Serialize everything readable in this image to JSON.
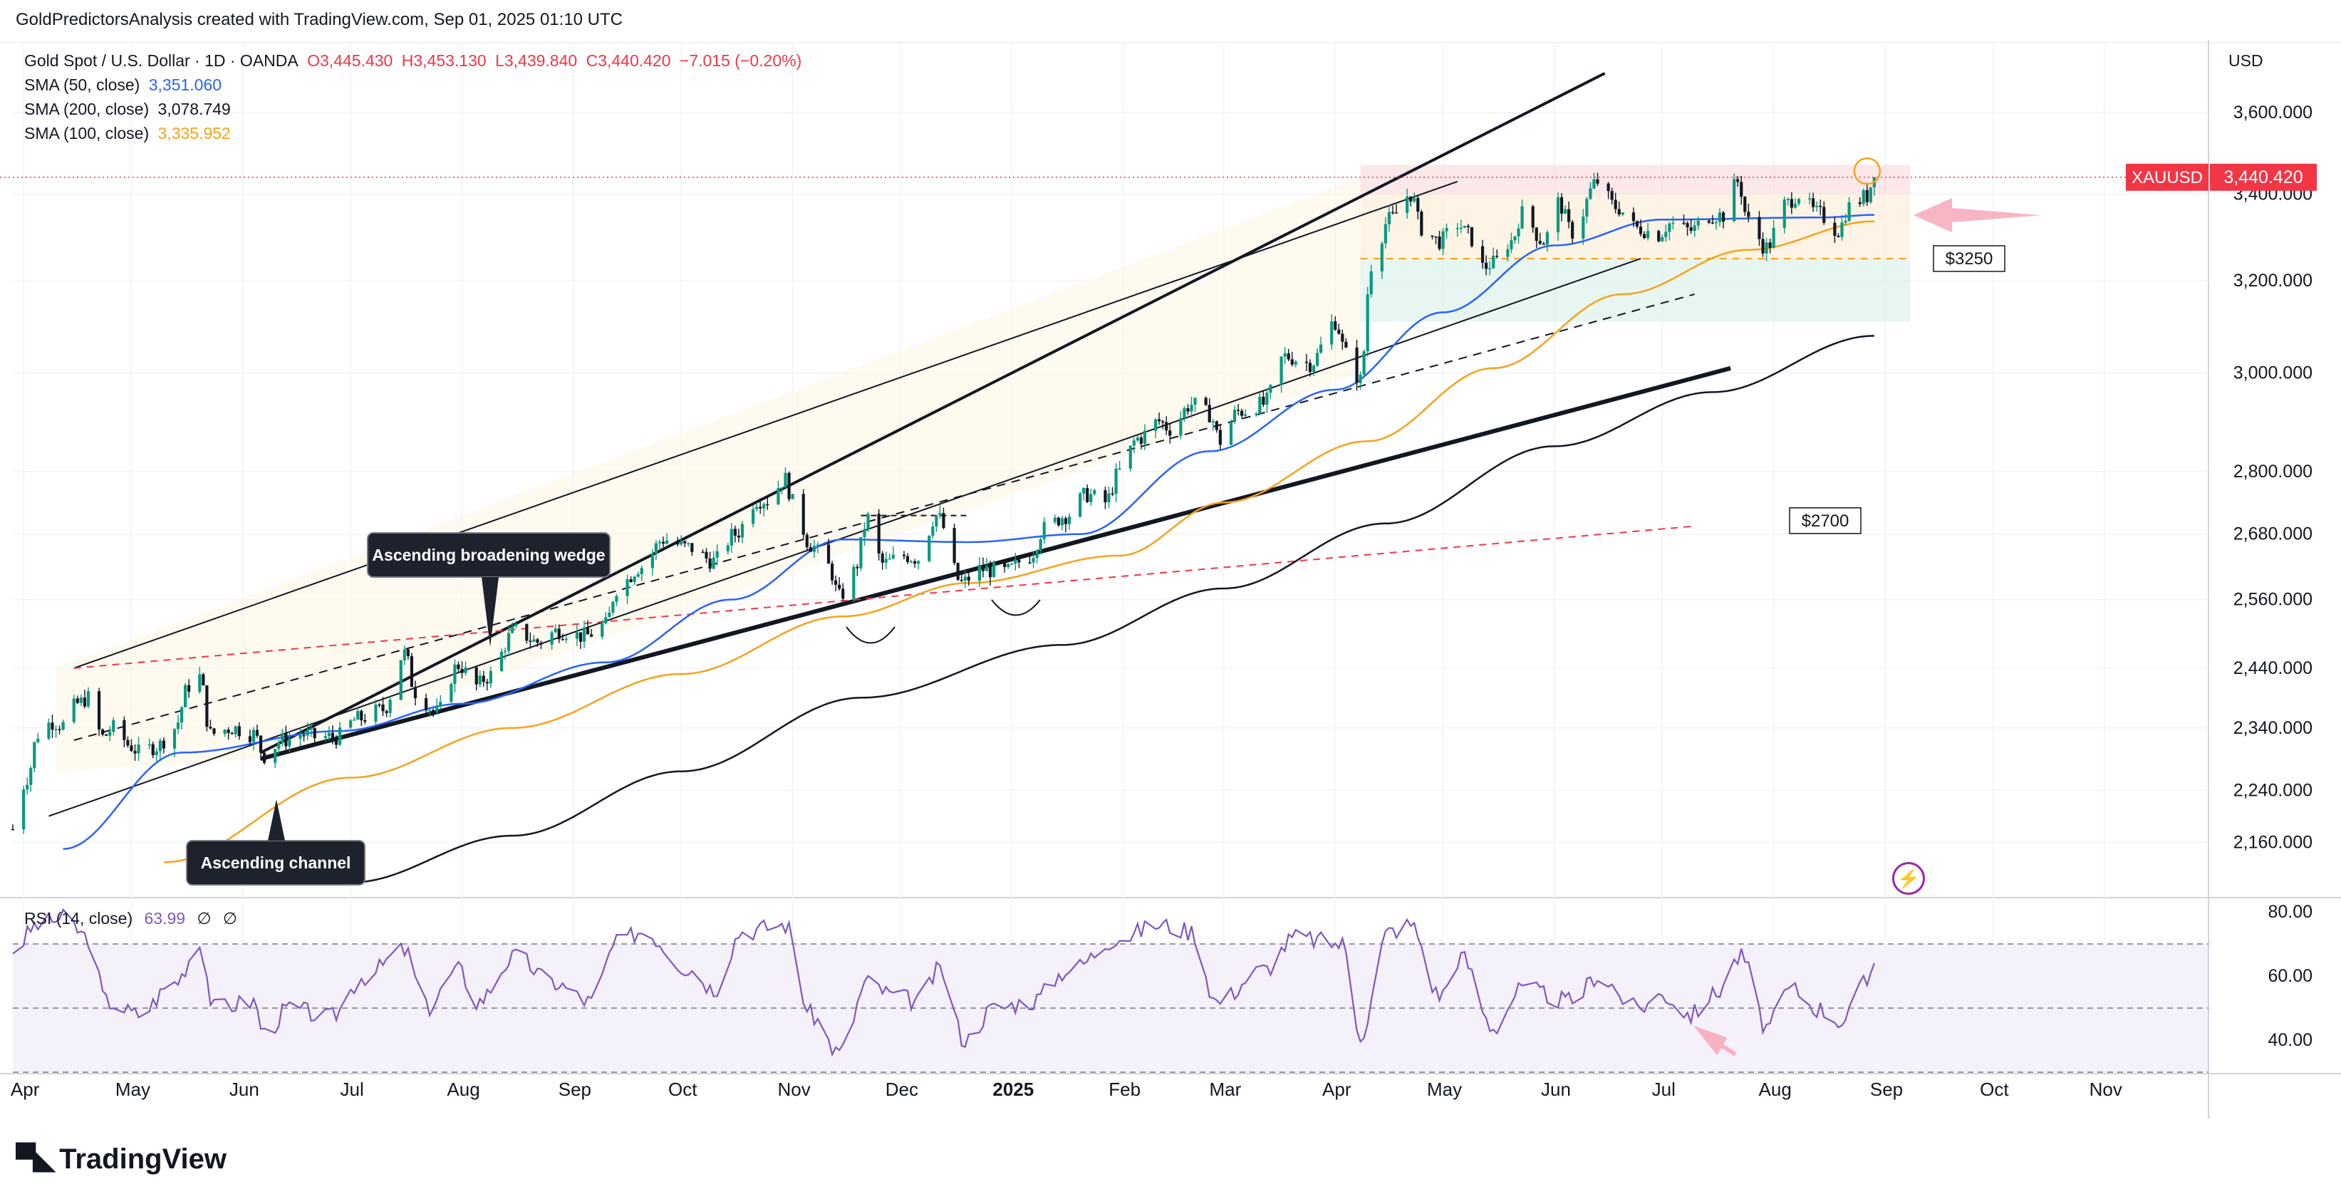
{
  "header": {
    "author_line": "GoldPredictorsAnalysis created with TradingView.com, Sep 01, 2025 01:10 UTC"
  },
  "legend": {
    "symbol": "Gold Spot / U.S. Dollar · 1D · OANDA",
    "ohlc": {
      "o": "O3,445.430",
      "h": "H3,453.130",
      "l": "L3,439.840",
      "c": "C3,440.420",
      "chg": "−7.015 (−0.20%)"
    },
    "sma50": {
      "label": "SMA (50, close)",
      "value": "3,351.060"
    },
    "sma200": {
      "label": "SMA (200, close)",
      "value": "3,078.749"
    },
    "sma100": {
      "label": "SMA (100, close)",
      "value": "3,335.952"
    }
  },
  "rsi_legend": {
    "label": "RSI (14, close)",
    "value": "63.99",
    "ph1": "∅",
    "ph2": "∅"
  },
  "axis": {
    "currency": "USD"
  },
  "price_tag": {
    "symbol": "XAUUSD",
    "value": "3,440.420"
  },
  "annotations": {
    "wedge": "Ascending broadening wedge",
    "channel": "Ascending channel",
    "level_3250": "$3250",
    "level_2700": "$2700"
  },
  "brand": {
    "name": "TradingView"
  },
  "colors": {
    "up": "#089981",
    "down": "#131722",
    "sma50": "#2962ff",
    "sma100": "#f7a21b",
    "sma200": "#131722",
    "rsi": "#7e57c2",
    "price_tag": "#f23645",
    "grid": "#f0f3fa"
  },
  "chart_data": [
    {
      "type": "candlestick",
      "title": "Gold Spot / U.S. Dollar · 1D · OANDA",
      "x_tick_labels": [
        "Apr",
        "May",
        "Jun",
        "Jul",
        "Aug",
        "Sep",
        "Oct",
        "Nov",
        "Dec",
        "2025",
        "Feb",
        "Mar",
        "Apr",
        "May",
        "Jun",
        "Jul",
        "Aug",
        "Sep",
        "Oct",
        "Nov"
      ],
      "y_tick_labels": [
        "2,160.000",
        "2,240.000",
        "2,340.000",
        "2,440.000",
        "2,560.000",
        "2,680.000",
        "2,800.000",
        "3,000.000",
        "3,200.000",
        "3,400.000",
        "3,600.000"
      ],
      "y_ticks": [
        2160,
        2240,
        2340,
        2440,
        2560,
        2680,
        2800,
        3000,
        3200,
        3400,
        3600
      ],
      "scale": "log",
      "ylim": [
        2080,
        3780
      ],
      "x_range": [
        "2024-03-29",
        "2025-11-30"
      ],
      "close_anchors": [
        [
          "2024-03-29",
          2180
        ],
        [
          "2024-04-02",
          2260
        ],
        [
          "2024-04-05",
          2330
        ],
        [
          "2024-04-09",
          2350
        ],
        [
          "2024-04-12",
          2345
        ],
        [
          "2024-04-16",
          2380
        ],
        [
          "2024-04-19",
          2390
        ],
        [
          "2024-04-23",
          2325
        ],
        [
          "2024-04-26",
          2340
        ],
        [
          "2024-05-01",
          2310
        ],
        [
          "2024-05-03",
          2300
        ],
        [
          "2024-05-08",
          2310
        ],
        [
          "2024-05-13",
          2340
        ],
        [
          "2024-05-17",
          2410
        ],
        [
          "2024-05-20",
          2425
        ],
        [
          "2024-05-23",
          2330
        ],
        [
          "2024-05-29",
          2340
        ],
        [
          "2024-06-04",
          2330
        ],
        [
          "2024-06-07",
          2295
        ],
        [
          "2024-06-12",
          2320
        ],
        [
          "2024-06-18",
          2330
        ],
        [
          "2024-06-21",
          2325
        ],
        [
          "2024-06-27",
          2325
        ],
        [
          "2024-07-03",
          2355
        ],
        [
          "2024-07-10",
          2370
        ],
        [
          "2024-07-16",
          2465
        ],
        [
          "2024-07-19",
          2400
        ],
        [
          "2024-07-25",
          2365
        ],
        [
          "2024-07-31",
          2445
        ],
        [
          "2024-08-05",
          2410
        ],
        [
          "2024-08-08",
          2425
        ],
        [
          "2024-08-16",
          2505
        ],
        [
          "2024-08-22",
          2485
        ],
        [
          "2024-08-28",
          2505
        ],
        [
          "2024-09-04",
          2495
        ],
        [
          "2024-09-10",
          2515
        ],
        [
          "2024-09-13",
          2580
        ],
        [
          "2024-09-20",
          2620
        ],
        [
          "2024-09-26",
          2670
        ],
        [
          "2024-10-03",
          2655
        ],
        [
          "2024-10-10",
          2630
        ],
        [
          "2024-10-16",
          2680
        ],
        [
          "2024-10-22",
          2745
        ],
        [
          "2024-10-25",
          2745
        ],
        [
          "2024-10-30",
          2785
        ],
        [
          "2024-11-01",
          2740
        ],
        [
          "2024-11-06",
          2660
        ],
        [
          "2024-11-11",
          2620
        ],
        [
          "2024-11-14",
          2565
        ],
        [
          "2024-11-18",
          2610
        ],
        [
          "2024-11-22",
          2710
        ],
        [
          "2024-11-26",
          2625
        ],
        [
          "2024-12-02",
          2640
        ],
        [
          "2024-12-06",
          2635
        ],
        [
          "2024-12-11",
          2715
        ],
        [
          "2024-12-18",
          2590
        ],
        [
          "2024-12-23",
          2615
        ],
        [
          "2024-12-30",
          2610
        ],
        [
          "2025-01-06",
          2640
        ],
        [
          "2025-01-10",
          2690
        ],
        [
          "2025-01-16",
          2715
        ],
        [
          "2025-01-22",
          2755
        ],
        [
          "2025-01-27",
          2740
        ],
        [
          "2025-01-31",
          2800
        ],
        [
          "2025-02-05",
          2865
        ],
        [
          "2025-02-11",
          2900
        ],
        [
          "2025-02-14",
          2885
        ],
        [
          "2025-02-20",
          2935
        ],
        [
          "2025-02-25",
          2915
        ],
        [
          "2025-02-28",
          2860
        ],
        [
          "2025-03-05",
          2920
        ],
        [
          "2025-03-12",
          2935
        ],
        [
          "2025-03-18",
          3035
        ],
        [
          "2025-03-25",
          3020
        ],
        [
          "2025-04-01",
          3110
        ],
        [
          "2025-04-04",
          3040
        ],
        [
          "2025-04-08",
          2985
        ],
        [
          "2025-04-11",
          3235
        ],
        [
          "2025-04-16",
          3340
        ],
        [
          "2025-04-22",
          3400
        ],
        [
          "2025-04-25",
          3320
        ],
        [
          "2025-04-30",
          3290
        ],
        [
          "2025-05-05",
          3330
        ],
        [
          "2025-05-08",
          3305
        ],
        [
          "2025-05-12",
          3230
        ],
        [
          "2025-05-15",
          3240
        ],
        [
          "2025-05-20",
          3290
        ],
        [
          "2025-05-23",
          3355
        ],
        [
          "2025-05-29",
          3290
        ],
        [
          "2025-06-02",
          3380
        ],
        [
          "2025-06-06",
          3310
        ],
        [
          "2025-06-13",
          3430
        ],
        [
          "2025-06-18",
          3370
        ],
        [
          "2025-06-24",
          3320
        ],
        [
          "2025-06-30",
          3305
        ],
        [
          "2025-07-03",
          3330
        ],
        [
          "2025-07-09",
          3315
        ],
        [
          "2025-07-14",
          3350
        ],
        [
          "2025-07-18",
          3350
        ],
        [
          "2025-07-22",
          3430
        ],
        [
          "2025-07-25",
          3335
        ],
        [
          "2025-07-30",
          3275
        ],
        [
          "2025-08-04",
          3375
        ],
        [
          "2025-08-08",
          3400
        ],
        [
          "2025-08-13",
          3355
        ],
        [
          "2025-08-19",
          3315
        ],
        [
          "2025-08-22",
          3370
        ],
        [
          "2025-08-27",
          3395
        ],
        [
          "2025-08-29",
          3447
        ]
      ],
      "series": [
        {
          "name": "SMA (50, close)",
          "last": 3351.06,
          "anchors": [
            [
              "2024-04-12",
              2150
            ],
            [
              "2024-05-15",
              2300
            ],
            [
              "2024-06-28",
              2335
            ],
            [
              "2024-08-01",
              2380
            ],
            [
              "2024-09-10",
              2450
            ],
            [
              "2024-10-15",
              2560
            ],
            [
              "2024-11-15",
              2670
            ],
            [
              "2024-12-20",
              2665
            ],
            [
              "2025-01-20",
              2680
            ],
            [
              "2025-02-25",
              2840
            ],
            [
              "2025-04-01",
              2965
            ],
            [
              "2025-05-01",
              3130
            ],
            [
              "2025-06-01",
              3280
            ],
            [
              "2025-07-01",
              3340
            ],
            [
              "2025-08-15",
              3345
            ],
            [
              "2025-08-29",
              3351
            ]
          ]
        },
        {
          "name": "SMA (100, close)",
          "last": 3335.952,
          "anchors": [
            [
              "2024-05-10",
              2130
            ],
            [
              "2024-07-01",
              2260
            ],
            [
              "2024-08-15",
              2340
            ],
            [
              "2024-10-01",
              2430
            ],
            [
              "2024-11-15",
              2530
            ],
            [
              "2024-12-20",
              2590
            ],
            [
              "2025-01-31",
              2640
            ],
            [
              "2025-03-01",
              2740
            ],
            [
              "2025-04-10",
              2860
            ],
            [
              "2025-05-15",
              3010
            ],
            [
              "2025-06-20",
              3170
            ],
            [
              "2025-07-25",
              3270
            ],
            [
              "2025-08-29",
              3336
            ]
          ]
        },
        {
          "name": "SMA (200, close)",
          "last": 3078.749,
          "anchors": [
            [
              "2024-07-01",
              2100
            ],
            [
              "2024-08-15",
              2170
            ],
            [
              "2024-10-01",
              2270
            ],
            [
              "2024-11-20",
              2390
            ],
            [
              "2025-01-15",
              2480
            ],
            [
              "2025-03-01",
              2580
            ],
            [
              "2025-04-15",
              2700
            ],
            [
              "2025-06-01",
              2850
            ],
            [
              "2025-07-15",
              2960
            ],
            [
              "2025-08-29",
              3079
            ]
          ]
        }
      ],
      "annotations": [
        {
          "type": "zone",
          "label": "$3250",
          "level": 3250
        },
        {
          "type": "level",
          "label": "$2700",
          "level": 2700
        },
        {
          "type": "pattern",
          "label": "Ascending broadening wedge"
        },
        {
          "type": "pattern",
          "label": "Ascending channel"
        }
      ]
    },
    {
      "type": "line",
      "title": "RSI (14, close)",
      "y_tick_labels": [
        "80.00",
        "60.00",
        "40.00"
      ],
      "y_ticks": [
        80,
        60,
        40
      ],
      "ylim": [
        30,
        84
      ],
      "bands": [
        70,
        50,
        30
      ],
      "last": 63.99,
      "anchors": [
        [
          "2024-03-29",
          68
        ],
        [
          "2024-04-05",
          76
        ],
        [
          "2024-04-12",
          78
        ],
        [
          "2024-04-19",
          72
        ],
        [
          "2024-04-24",
          52
        ],
        [
          "2024-05-03",
          48
        ],
        [
          "2024-05-13",
          58
        ],
        [
          "2024-05-20",
          70
        ],
        [
          "2024-05-24",
          50
        ],
        [
          "2024-06-04",
          52
        ],
        [
          "2024-06-07",
          42
        ],
        [
          "2024-06-14",
          50
        ],
        [
          "2024-06-25",
          47
        ],
        [
          "2024-07-05",
          60
        ],
        [
          "2024-07-16",
          68
        ],
        [
          "2024-07-22",
          50
        ],
        [
          "2024-07-31",
          62
        ],
        [
          "2024-08-05",
          52
        ],
        [
          "2024-08-16",
          66
        ],
        [
          "2024-08-26",
          58
        ],
        [
          "2024-09-06",
          52
        ],
        [
          "2024-09-13",
          70
        ],
        [
          "2024-09-20",
          74
        ],
        [
          "2024-10-04",
          62
        ],
        [
          "2024-10-10",
          56
        ],
        [
          "2024-10-18",
          74
        ],
        [
          "2024-10-30",
          76
        ],
        [
          "2024-11-06",
          48
        ],
        [
          "2024-11-14",
          36
        ],
        [
          "2024-11-22",
          58
        ],
        [
          "2024-11-29",
          54
        ],
        [
          "2024-12-06",
          52
        ],
        [
          "2024-12-12",
          62
        ],
        [
          "2024-12-19",
          40
        ],
        [
          "2024-12-27",
          50
        ],
        [
          "2025-01-06",
          52
        ],
        [
          "2025-01-17",
          62
        ],
        [
          "2025-01-31",
          72
        ],
        [
          "2025-02-11",
          76
        ],
        [
          "2025-02-20",
          74
        ],
        [
          "2025-02-27",
          52
        ],
        [
          "2025-03-12",
          62
        ],
        [
          "2025-03-21",
          72
        ],
        [
          "2025-04-03",
          70
        ],
        [
          "2025-04-08",
          42
        ],
        [
          "2025-04-16",
          74
        ],
        [
          "2025-04-22",
          76
        ],
        [
          "2025-04-30",
          54
        ],
        [
          "2025-05-06",
          66
        ],
        [
          "2025-05-15",
          44
        ],
        [
          "2025-05-23",
          56
        ],
        [
          "2025-06-06",
          52
        ],
        [
          "2025-06-13",
          60
        ],
        [
          "2025-06-24",
          50
        ],
        [
          "2025-07-01",
          54
        ],
        [
          "2025-07-09",
          48
        ],
        [
          "2025-07-15",
          54
        ],
        [
          "2025-07-23",
          66
        ],
        [
          "2025-07-30",
          44
        ],
        [
          "2025-08-06",
          56
        ],
        [
          "2025-08-13",
          50
        ],
        [
          "2025-08-20",
          46
        ],
        [
          "2025-08-27",
          58
        ],
        [
          "2025-08-29",
          64
        ]
      ]
    }
  ]
}
